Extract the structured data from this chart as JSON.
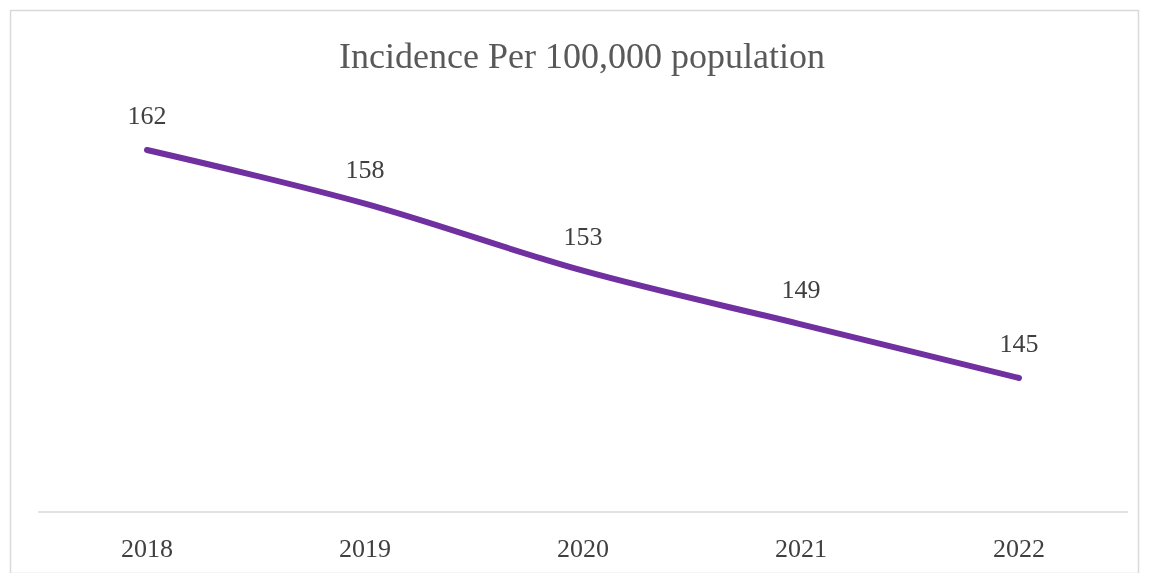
{
  "chart_data": {
    "type": "line",
    "title": "Incidence Per 100,000 population",
    "categories": [
      "2018",
      "2019",
      "2020",
      "2021",
      "2022"
    ],
    "series": [
      {
        "color": "#7030a0",
        "values": [
          162,
          158,
          153,
          149,
          145
        ]
      }
    ],
    "data_labels": true,
    "marker": "none"
  }
}
